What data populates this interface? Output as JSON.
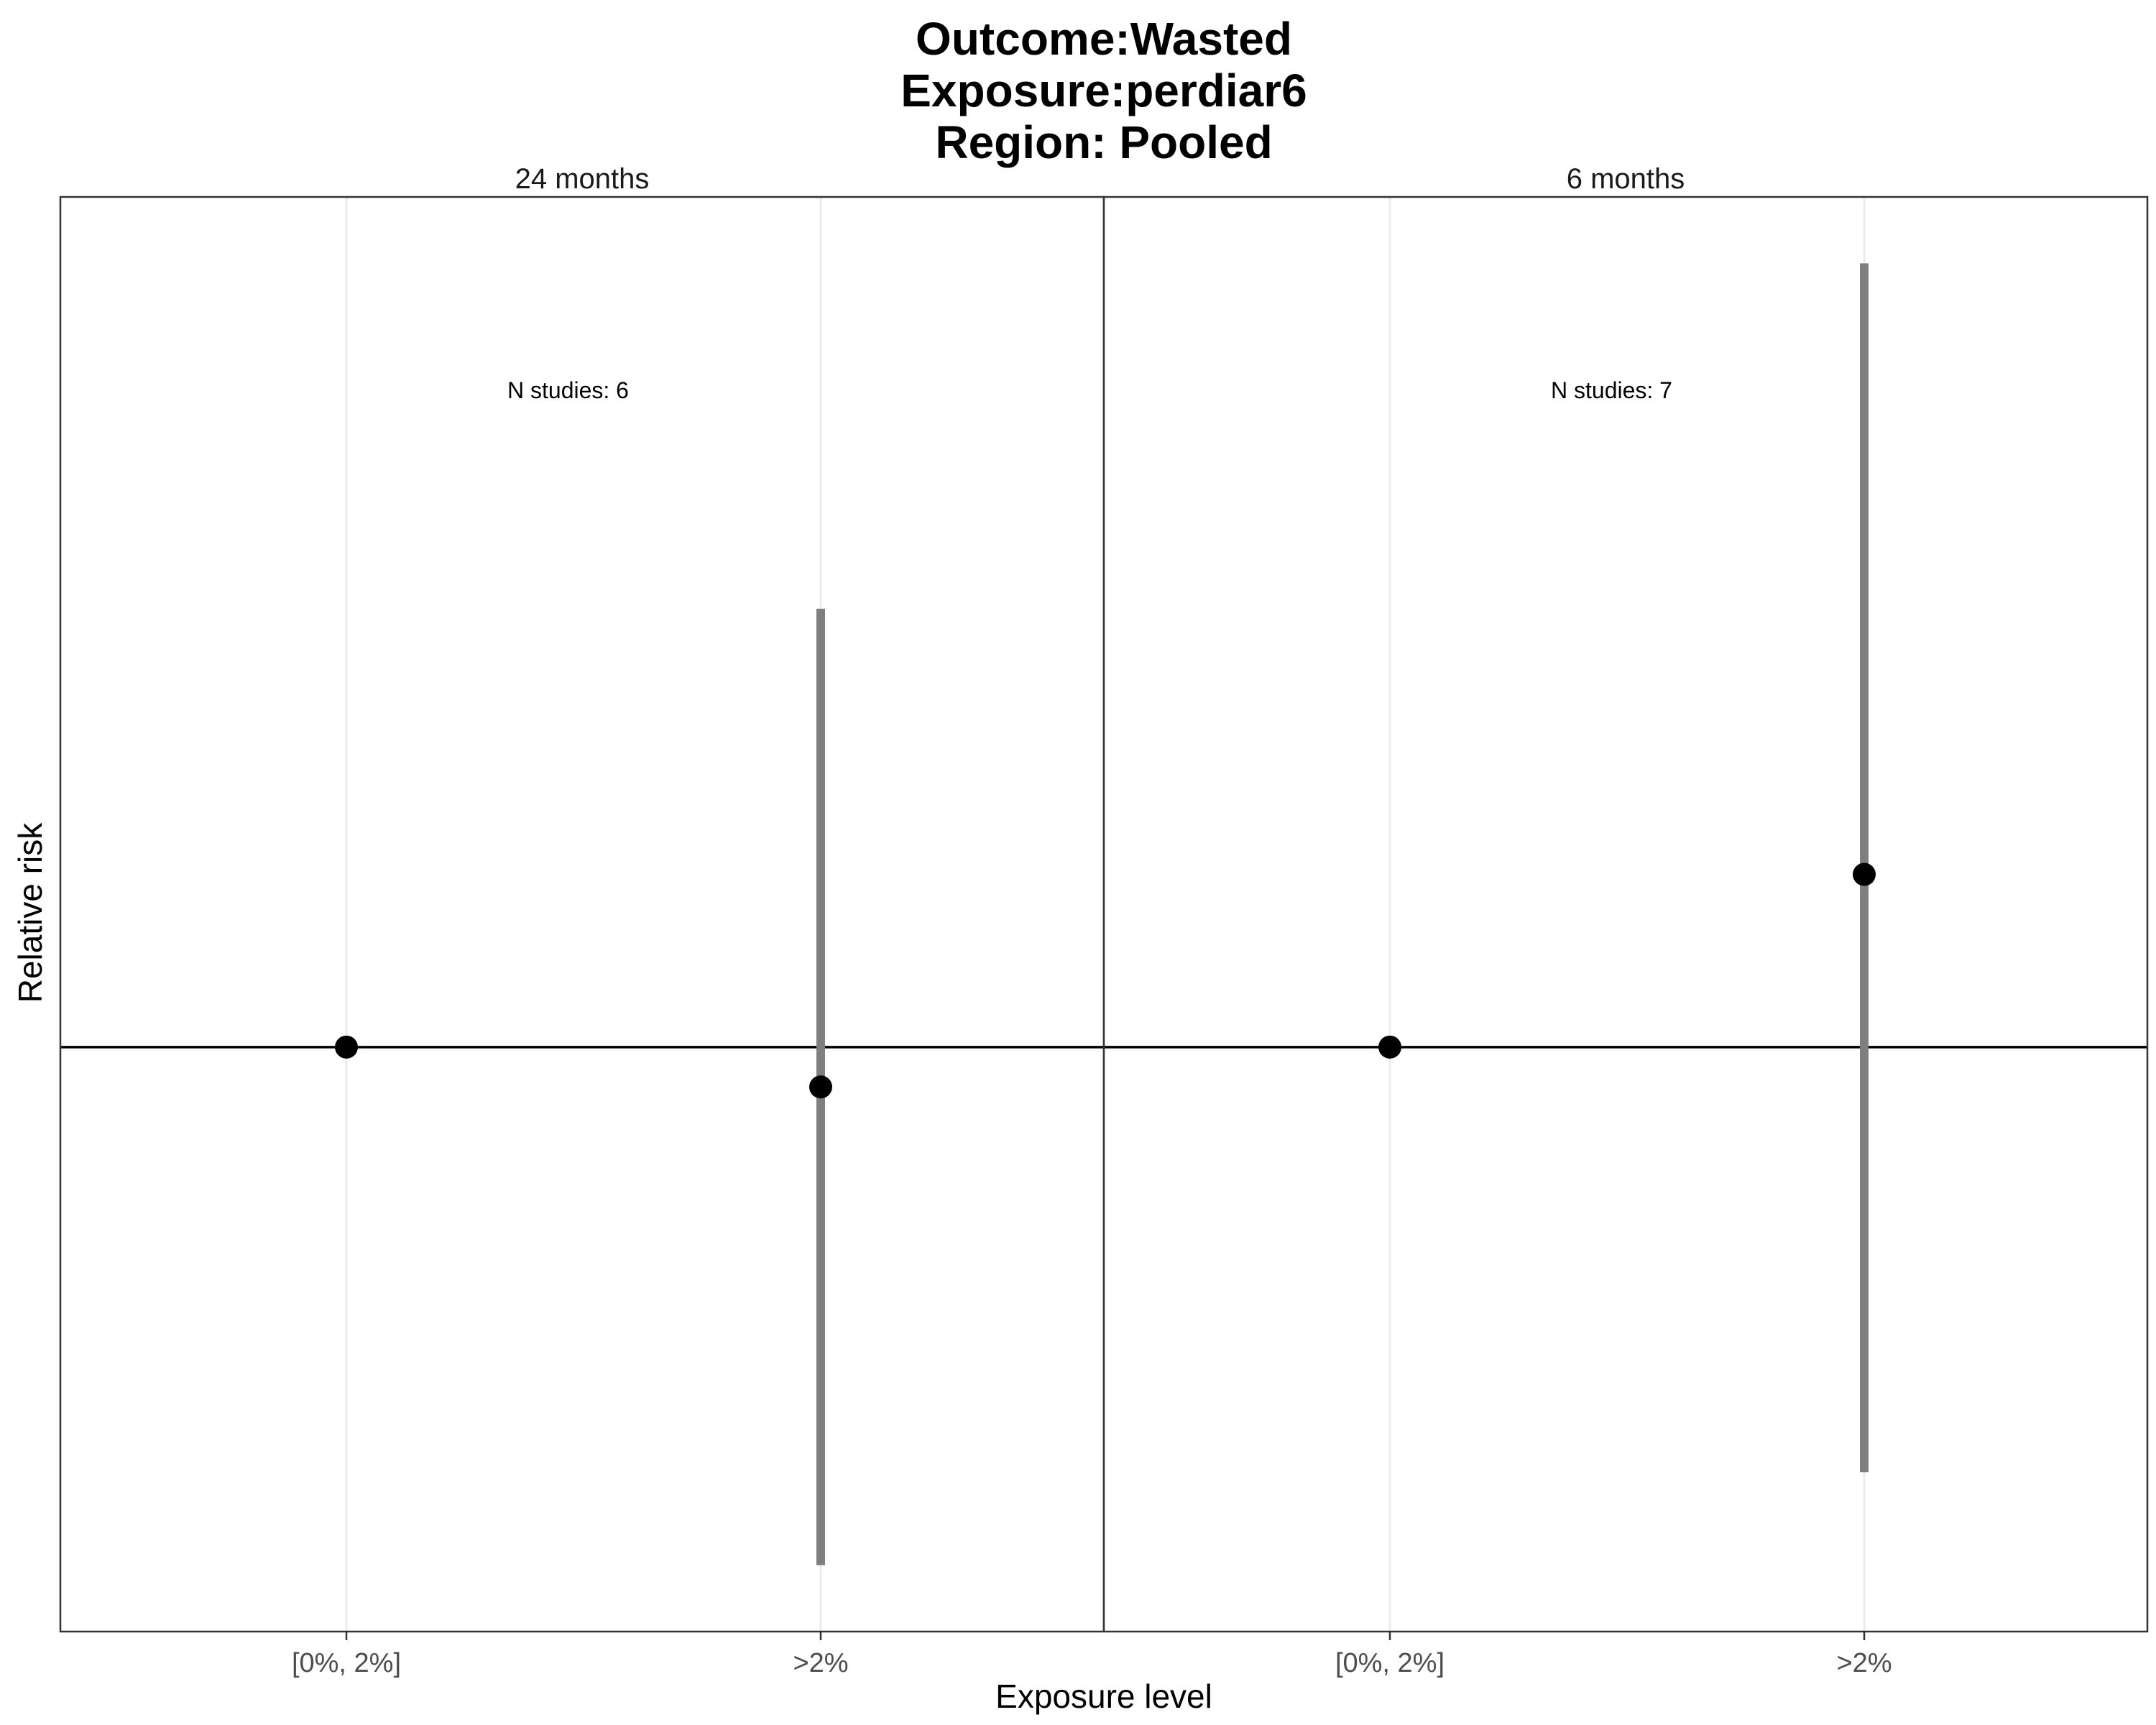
{
  "chart_data": {
    "type": "scatter",
    "title_lines": [
      "Outcome:Wasted",
      "Exposure:perdiar6",
      "Region: Pooled"
    ],
    "xlabel": "Exposure level",
    "ylabel": "Relative risk",
    "categories": [
      "[0%, 2%]",
      ">2%"
    ],
    "reference_line": 1,
    "grid": "vertical",
    "panels": [
      {
        "label": "24 months",
        "annotation": "N studies: 6",
        "points": [
          {
            "category": "[0%, 2%]",
            "rr": 1.0,
            "lower": null,
            "upper": null
          },
          {
            "category": ">2%",
            "rr": 0.97,
            "lower": 0.61,
            "upper": 1.33
          }
        ]
      },
      {
        "label": "6 months",
        "annotation": "N studies: 7",
        "points": [
          {
            "category": "[0%, 2%]",
            "rr": 1.0,
            "lower": null,
            "upper": null
          },
          {
            "category": ">2%",
            "rr": 1.13,
            "lower": 0.68,
            "upper": 1.59
          }
        ]
      }
    ],
    "ylim": [
      0.56,
      1.64
    ]
  }
}
